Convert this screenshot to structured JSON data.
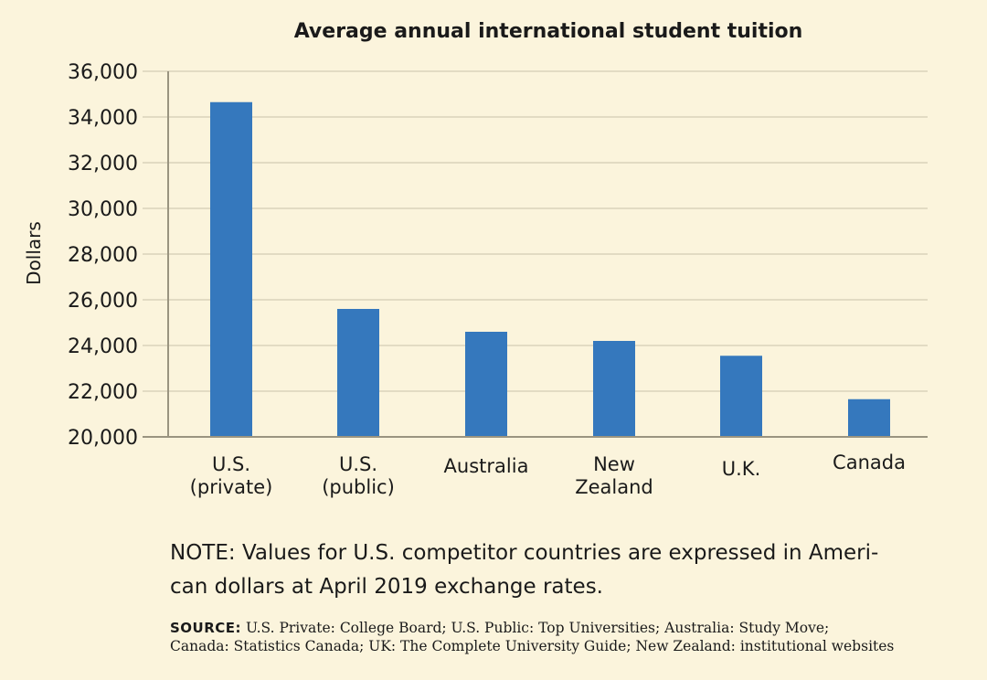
{
  "chart_data": {
    "type": "bar",
    "title": "Average annual international student tuition",
    "xlabel": "",
    "ylabel": "Dollars",
    "categories": [
      [
        "U.S.",
        "(private)"
      ],
      [
        "U.S.",
        "(public)"
      ],
      [
        "Australia"
      ],
      [
        "New",
        "Zealand"
      ],
      [
        "U.K."
      ],
      [
        "Canada"
      ]
    ],
    "values": [
      34650,
      25600,
      24600,
      24200,
      23550,
      21650
    ],
    "ylim": [
      20000,
      36000
    ],
    "yticks": [
      "20,000",
      "22,000",
      "24,000",
      "26,000",
      "28,000",
      "30,000",
      "32,000",
      "34,000",
      "36,000"
    ],
    "ytick_values": [
      20000,
      22000,
      24000,
      26000,
      28000,
      30000,
      32000,
      34000,
      36000
    ],
    "grid": true,
    "bar_color": "#3578bd"
  },
  "note": {
    "lines": [
      "NOTE: Values for U.S. competitor countries are expressed in Ameri-",
      "can dollars at April 2019 exchange rates."
    ]
  },
  "source": {
    "label": "SOURCE:",
    "lines": [
      "U.S. Private: College Board; U.S. Public: Top Universities; Australia: Study Move;",
      "Canada: Statistics Canada; UK: The Complete University Guide; New Zealand: institutional websites"
    ]
  },
  "colors": {
    "background": "#fbf4dc",
    "bar": "#3578bd",
    "text": "#1a1a1a"
  }
}
